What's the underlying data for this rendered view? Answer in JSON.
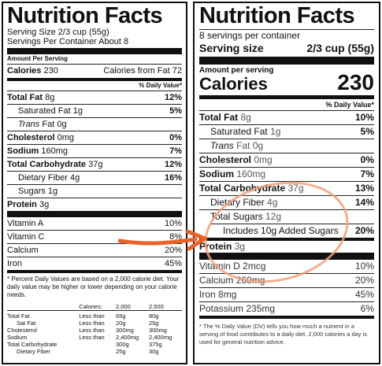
{
  "left": {
    "title": "Nutrition Facts",
    "serving_size": "Serving Size 2/3 cup (55g)",
    "servings_per_container": "Servings Per Container About 8",
    "amount_per_serving": "Amount Per Serving",
    "calories_label": "Calories",
    "calories_value": "230",
    "calories_from_fat": "Calories from Fat 72",
    "dv_header": "% Daily Value*",
    "nutrients": [
      {
        "label": "Total Fat",
        "amount": "8g",
        "dv": "12%",
        "bold": true,
        "indent": 0
      },
      {
        "label": "Saturated Fat",
        "amount": "1g",
        "dv": "5%",
        "bold": false,
        "indent": 1
      },
      {
        "label": "Trans",
        "amount": "Fat 0g",
        "dv": "",
        "bold": false,
        "indent": 1,
        "italic_label": true
      },
      {
        "label": "Cholesterol",
        "amount": "0mg",
        "dv": "0%",
        "bold": true,
        "indent": 0
      },
      {
        "label": "Sodium",
        "amount": "160mg",
        "dv": "7%",
        "bold": true,
        "indent": 0
      },
      {
        "label": "Total Carbohydrate",
        "amount": "37g",
        "dv": "12%",
        "bold": true,
        "indent": 0
      },
      {
        "label": "Dietary Fiber",
        "amount": "4g",
        "dv": "16%",
        "bold": false,
        "indent": 1
      },
      {
        "label": "Sugars",
        "amount": "1g",
        "dv": "",
        "bold": false,
        "indent": 1
      },
      {
        "label": "Protein",
        "amount": "3g",
        "dv": "",
        "bold": true,
        "indent": 0
      }
    ],
    "vitamins": [
      {
        "label": "Vitamin A",
        "dv": "10%"
      },
      {
        "label": "Vitamin C",
        "dv": "8%"
      },
      {
        "label": "Calcium",
        "dv": "20%"
      },
      {
        "label": "Iron",
        "dv": "45%"
      }
    ],
    "footnote": "* Percent Daily Values are based on a 2,000 calorie diet. Your daily value may be higher or lower depending on your calorie needs.",
    "table_header": [
      "",
      "Calories:",
      "2,000",
      "2,500"
    ],
    "table_rows": [
      [
        "Total Fat",
        "Less than",
        "65g",
        "80g"
      ],
      [
        "Sat Fat",
        "Less than",
        "20g",
        "25g"
      ],
      [
        "Cholesterol",
        "Less than",
        "300mg",
        "300mg"
      ],
      [
        "Sodium",
        "Less than",
        "2,400mg",
        "2,400mg"
      ],
      [
        "Total Carbohydrate",
        "",
        "300g",
        "375g"
      ],
      [
        "Dietary Fiber",
        "",
        "25g",
        "30g"
      ]
    ]
  },
  "right": {
    "title": "Nutrition Facts",
    "servings_per_container": "8 servings per container",
    "serving_size_label": "Serving size",
    "serving_size_value": "2/3 cup (55g)",
    "amount_per_serving": "Amount per serving",
    "calories_label": "Calories",
    "calories_value": "230",
    "dv_header": "% Daily Value*",
    "nutrients": [
      {
        "label": "Total Fat",
        "amount": "8g",
        "dv": "10%",
        "bold": true,
        "indent": 0
      },
      {
        "label": "Saturated Fat",
        "amount": "1g",
        "dv": "5%",
        "bold": false,
        "indent": 1
      },
      {
        "label": "Trans",
        "amount": "Fat 0g",
        "dv": "",
        "bold": false,
        "indent": 1,
        "italic_label": true
      },
      {
        "label": "Cholesterol",
        "amount": "0mg",
        "dv": "0%",
        "bold": true,
        "indent": 0
      },
      {
        "label": "Sodium",
        "amount": "160mg",
        "dv": "7%",
        "bold": true,
        "indent": 0
      },
      {
        "label": "Total Carbohydrate",
        "amount": "37g",
        "dv": "13%",
        "bold": true,
        "indent": 0
      },
      {
        "label": "Dietary Fiber",
        "amount": "4g",
        "dv": "14%",
        "bold": false,
        "indent": 1
      },
      {
        "label": "Total Sugars",
        "amount": "12g",
        "dv": "",
        "bold": false,
        "indent": 1
      },
      {
        "label": "Includes 10g Added Sugars",
        "amount": "",
        "dv": "20%",
        "bold": false,
        "indent": 2
      },
      {
        "label": "Protein",
        "amount": "3g",
        "dv": "",
        "bold": true,
        "indent": 0
      }
    ],
    "vitamins": [
      {
        "label": "Vitamin D",
        "amount": "2mcg",
        "dv": "10%"
      },
      {
        "label": "Calcium",
        "amount": "260mg",
        "dv": "20%"
      },
      {
        "label": "Iron",
        "amount": "8mg",
        "dv": "45%"
      },
      {
        "label": "Potassium",
        "amount": "235mg",
        "dv": "6%"
      }
    ],
    "footnote": "* The % Daily Value (DV) tells you how much a nutrient in a serving of food contributes to a daily diet. 2,000 calories a day is used for general nutrition advice."
  },
  "annotation": {
    "arrow_color": "#e8622a",
    "circle_color": "#f0a07a"
  }
}
